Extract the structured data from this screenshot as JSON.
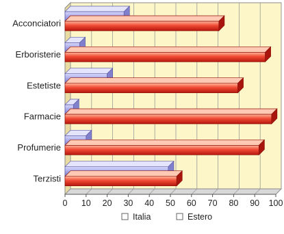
{
  "chart_data": {
    "type": "bar",
    "orientation": "horizontal",
    "style": "3d",
    "categories": [
      "Acconciatori",
      "Erboristerie",
      "Estetiste",
      "Farmacie",
      "Profumerie",
      "Terzisti"
    ],
    "series": [
      {
        "name": "Italia",
        "values": [
          28,
          7,
          20,
          4,
          10,
          49
        ],
        "color": "#a9a9e8"
      },
      {
        "name": "Estero",
        "values": [
          73,
          95,
          82,
          98,
          92,
          53
        ],
        "color": "#e23a2c"
      }
    ],
    "x_ticks": [
      0,
      10,
      20,
      30,
      40,
      50,
      60,
      70,
      80,
      90,
      100
    ],
    "xlim": [
      0,
      100
    ],
    "grid": true,
    "legend_position": "bottom",
    "background_color": "#fdf6c8"
  }
}
